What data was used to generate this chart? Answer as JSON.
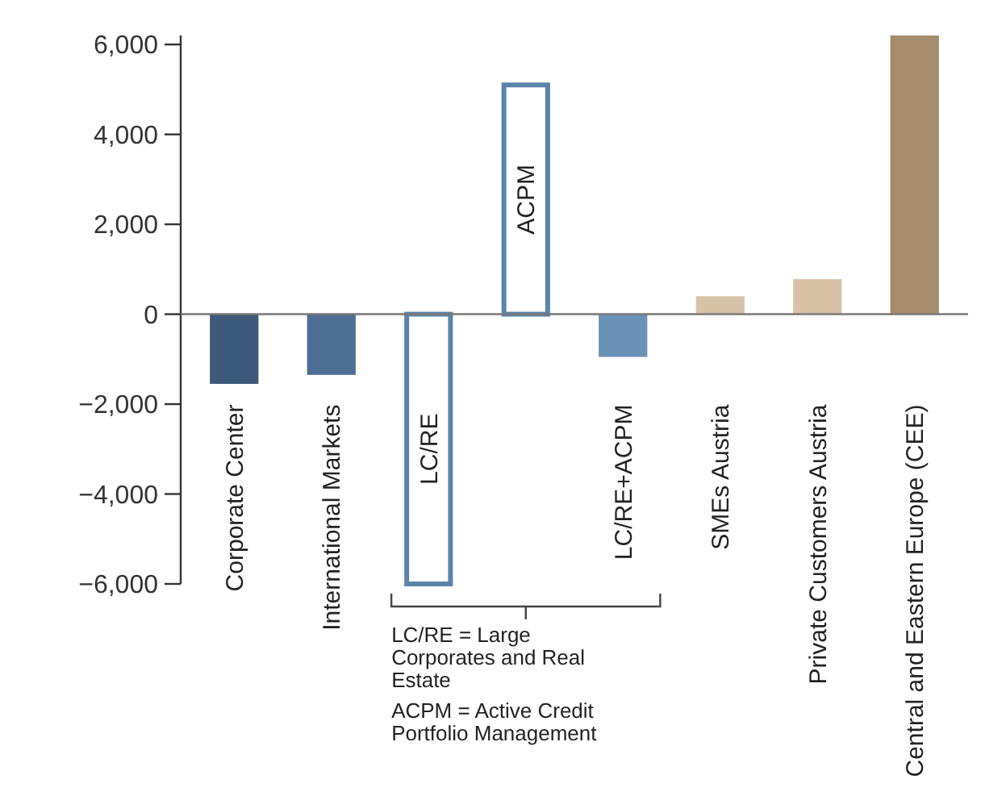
{
  "chart_data": {
    "type": "bar",
    "categories": [
      "Corporate Center",
      "International Markets",
      "LC/RE",
      "ACPM",
      "LC/RE+ACPM",
      "SMEs Austria",
      "Private Customers Austria",
      "Central and Eastern Europe (CEE)"
    ],
    "series": [
      {
        "colors": [
          "#3d5a7a",
          "#4e6f93",
          null,
          null,
          "#6a91b8",
          "#d8c3a8",
          "#d8c3a8",
          "#a58c6c"
        ],
        "values": [
          -1550,
          -1350,
          null,
          null,
          -950,
          400,
          780,
          6200
        ]
      },
      {
        "color": "#5b84ab",
        "values": [
          null,
          null,
          -6000,
          5100,
          null,
          null,
          null,
          null
        ]
      }
    ],
    "ylim": [
      -6000,
      6200
    ],
    "yticks": [
      {
        "value": -6000,
        "label": "−6,000"
      },
      {
        "value": -4000,
        "label": "−4,000"
      },
      {
        "value": -2000,
        "label": "−2,000"
      },
      0,
      {
        "value": 2000,
        "label": "2,000"
      },
      {
        "value": 4000,
        "label": "4,000"
      },
      {
        "value": 6000,
        "label": "6,000"
      }
    ],
    "annotations": [
      "LC/RE = Large Corporates and Real Estate",
      "ACPM = Active Credit Portfolio Management"
    ]
  }
}
